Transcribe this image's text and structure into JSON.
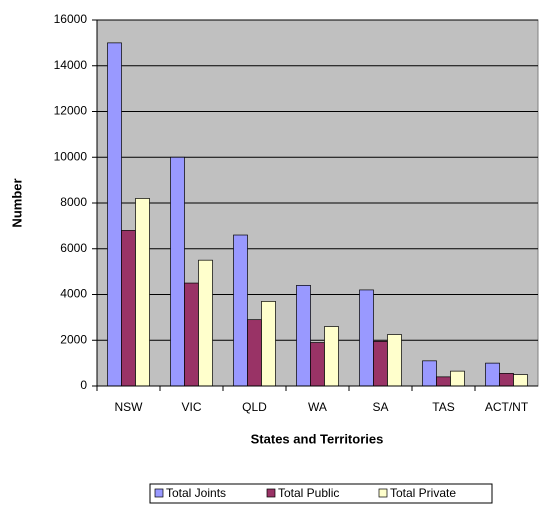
{
  "chart_data": {
    "type": "bar",
    "x_label": "States and Territories",
    "y_label": "Number",
    "categories": [
      "NSW",
      "VIC",
      "QLD",
      "WA",
      "SA",
      "TAS",
      "ACT/NT"
    ],
    "series": [
      {
        "name": "Total Joints",
        "color": "#9999ff",
        "values": [
          15000,
          10000,
          6600,
          4400,
          4200,
          1100,
          1000
        ]
      },
      {
        "name": "Total Public",
        "color": "#993366",
        "values": [
          6800,
          4500,
          2900,
          1900,
          1950,
          400,
          550
        ]
      },
      {
        "name": "Total Private",
        "color": "#ffffcc",
        "values": [
          8200,
          5500,
          3700,
          2600,
          2250,
          650,
          500
        ]
      }
    ],
    "ylim": [
      0,
      16000
    ],
    "yticks": [
      0,
      2000,
      4000,
      6000,
      8000,
      10000,
      12000,
      14000,
      16000
    ],
    "grid": true,
    "plot_background": "#c0c0c0",
    "legend": "bottom"
  }
}
